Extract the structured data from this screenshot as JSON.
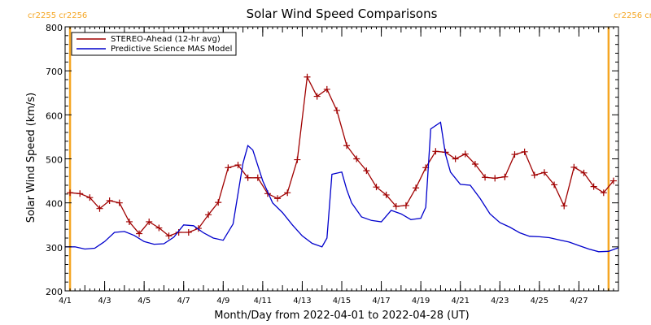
{
  "chart_data": {
    "type": "line",
    "title": "Solar Wind Speed Comparisons",
    "xlabel": "Month/Day from 2022-04-01 to 2022-04-28 (UT)",
    "ylabel": "Solar Wind Speed (km/s)",
    "ylim": [
      200,
      800
    ],
    "xlim": [
      "2022-04-01",
      "2022-04-29"
    ],
    "y_ticks": [
      "200",
      "300",
      "400",
      "500",
      "600",
      "700",
      "800"
    ],
    "x_ticks": [
      "4/1",
      "4/3",
      "4/5",
      "4/7",
      "4/9",
      "4/11",
      "4/13",
      "4/15",
      "4/17",
      "4/19",
      "4/21",
      "4/23",
      "4/25",
      "4/27"
    ],
    "x_tick_dates": [
      "2022-04-01",
      "2022-04-03",
      "2022-04-05",
      "2022-04-07",
      "2022-04-09",
      "2022-04-11",
      "2022-04-13",
      "2022-04-15",
      "2022-04-17",
      "2022-04-19",
      "2022-04-21",
      "2022-04-23",
      "2022-04-25",
      "2022-04-27"
    ],
    "grid": false,
    "legend_position": "top-left",
    "carrington_markers": [
      {
        "date": "2022-04-01 06:00",
        "labels": [
          "cr2255",
          "cr2256"
        ],
        "color": "#f5a623"
      },
      {
        "date": "2022-04-28 12:00",
        "labels": [
          "cr2256",
          "cr2257"
        ],
        "color": "#f5a623"
      }
    ],
    "series": [
      {
        "name": "STEREO-Ahead (12-hr avg)",
        "color": "#a00000",
        "marker": "plus",
        "x": [
          "2022-04-01 06:00",
          "2022-04-01 18:00",
          "2022-04-02 06:00",
          "2022-04-02 18:00",
          "2022-04-03 06:00",
          "2022-04-03 18:00",
          "2022-04-04 06:00",
          "2022-04-04 18:00",
          "2022-04-05 06:00",
          "2022-04-05 18:00",
          "2022-04-06 06:00",
          "2022-04-06 18:00",
          "2022-04-07 06:00",
          "2022-04-07 18:00",
          "2022-04-08 06:00",
          "2022-04-08 18:00",
          "2022-04-09 06:00",
          "2022-04-09 18:00",
          "2022-04-10 06:00",
          "2022-04-10 18:00",
          "2022-04-11 06:00",
          "2022-04-11 18:00",
          "2022-04-12 06:00",
          "2022-04-12 18:00",
          "2022-04-13 06:00",
          "2022-04-13 18:00",
          "2022-04-14 06:00",
          "2022-04-14 18:00",
          "2022-04-15 06:00",
          "2022-04-15 18:00",
          "2022-04-16 06:00",
          "2022-04-16 18:00",
          "2022-04-17 06:00",
          "2022-04-17 18:00",
          "2022-04-18 06:00",
          "2022-04-18 18:00",
          "2022-04-19 06:00",
          "2022-04-19 18:00",
          "2022-04-20 06:00",
          "2022-04-20 18:00",
          "2022-04-21 06:00",
          "2022-04-21 18:00",
          "2022-04-22 06:00",
          "2022-04-22 18:00",
          "2022-04-23 06:00",
          "2022-04-23 18:00",
          "2022-04-24 06:00",
          "2022-04-24 18:00",
          "2022-04-25 06:00",
          "2022-04-25 18:00",
          "2022-04-26 06:00",
          "2022-04-26 18:00",
          "2022-04-27 06:00",
          "2022-04-27 18:00",
          "2022-04-28 06:00",
          "2022-04-28 18:00"
        ],
        "values": [
          423,
          421,
          412,
          387,
          405,
          400,
          357,
          330,
          357,
          343,
          325,
          333,
          333,
          342,
          373,
          401,
          480,
          486,
          457,
          457,
          421,
          410,
          423,
          498,
          686,
          642,
          658,
          610,
          530,
          500,
          473,
          436,
          418,
          392,
          394,
          434,
          480,
          517,
          515,
          500,
          511,
          488,
          458,
          456,
          459,
          510,
          516,
          463,
          469,
          441,
          393,
          481,
          468,
          437,
          423,
          450
        ]
      },
      {
        "name": "Predictive Science MAS Model",
        "color": "#0000cc",
        "x": [
          "2022-04-01 00:00",
          "2022-04-01 12:00",
          "2022-04-02 00:00",
          "2022-04-02 12:00",
          "2022-04-03 00:00",
          "2022-04-03 12:00",
          "2022-04-04 00:00",
          "2022-04-04 12:00",
          "2022-04-05 00:00",
          "2022-04-05 12:00",
          "2022-04-06 00:00",
          "2022-04-06 12:00",
          "2022-04-07 00:00",
          "2022-04-07 12:00",
          "2022-04-08 00:00",
          "2022-04-08 12:00",
          "2022-04-09 00:00",
          "2022-04-09 12:00",
          "2022-04-10 00:00",
          "2022-04-10 06:00",
          "2022-04-10 12:00",
          "2022-04-11 00:00",
          "2022-04-11 12:00",
          "2022-04-12 00:00",
          "2022-04-12 12:00",
          "2022-04-13 00:00",
          "2022-04-13 12:00",
          "2022-04-14 00:00",
          "2022-04-14 06:00",
          "2022-04-14 12:00",
          "2022-04-15 00:00",
          "2022-04-15 06:00",
          "2022-04-15 12:00",
          "2022-04-16 00:00",
          "2022-04-16 12:00",
          "2022-04-17 00:00",
          "2022-04-17 12:00",
          "2022-04-18 00:00",
          "2022-04-18 12:00",
          "2022-04-19 00:00",
          "2022-04-19 06:00",
          "2022-04-19 12:00",
          "2022-04-20 00:00",
          "2022-04-20 06:00",
          "2022-04-20 12:00",
          "2022-04-21 00:00",
          "2022-04-21 12:00",
          "2022-04-22 00:00",
          "2022-04-22 12:00",
          "2022-04-23 00:00",
          "2022-04-23 12:00",
          "2022-04-24 00:00",
          "2022-04-24 12:00",
          "2022-04-25 00:00",
          "2022-04-25 12:00",
          "2022-04-26 00:00",
          "2022-04-26 12:00",
          "2022-04-27 00:00",
          "2022-04-27 12:00",
          "2022-04-28 00:00",
          "2022-04-28 12:00",
          "2022-04-29 00:00"
        ],
        "values": [
          300,
          300,
          295,
          297,
          312,
          333,
          335,
          326,
          312,
          306,
          307,
          322,
          350,
          348,
          332,
          320,
          315,
          352,
          490,
          530,
          520,
          450,
          400,
          378,
          350,
          325,
          308,
          300,
          320,
          465,
          470,
          430,
          400,
          368,
          360,
          357,
          383,
          375,
          362,
          365,
          390,
          568,
          583,
          510,
          470,
          442,
          440,
          410,
          375,
          355,
          345,
          332,
          324,
          323,
          321,
          316,
          311,
          303,
          295,
          289,
          290,
          298
        ]
      }
    ]
  }
}
